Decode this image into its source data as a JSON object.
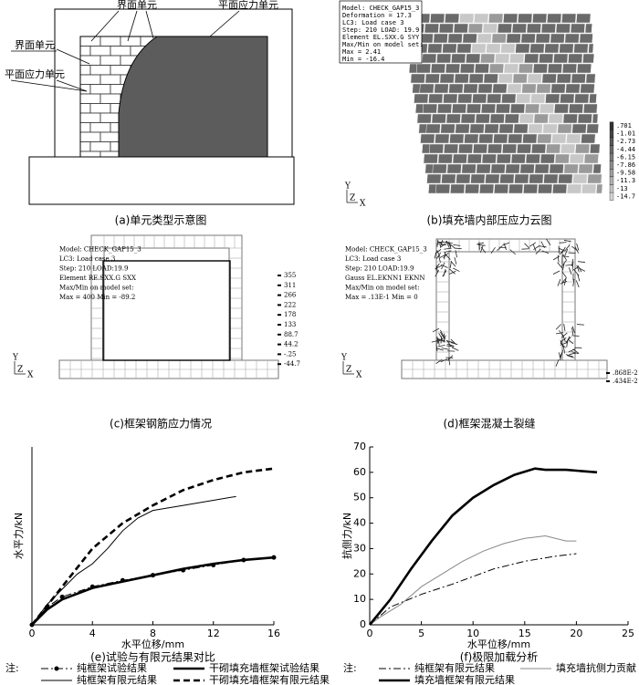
{
  "figures": {
    "a": {
      "caption": "(a)单元类型示意图",
      "labels": [
        "界面单元",
        "平面应力单元",
        "界面单元",
        "平面应力单元"
      ]
    },
    "b": {
      "caption": "(b)填充墙内部压应力云图",
      "info": [
        "Model: CHECK_GAP15_3",
        "Deformation = 17.3",
        "LC3: Load case 3",
        "Step: 210  LOAD: 19.9",
        "Element EL.SXX.G SYY",
        "Max/Min on model set:",
        "Max = 2.41",
        "Min = -16.4"
      ],
      "legend": [
        ".701",
        "-1.01",
        "-2.73",
        "-4.44",
        "-6.15",
        "-7.86",
        "-9.58",
        "-11.3",
        "-13",
        "-14.7"
      ],
      "axes": [
        "Y",
        "Z",
        "X"
      ]
    },
    "c": {
      "caption": "(c)框架钢筋应力情况",
      "info": [
        "Model: CHECK_GAP15_3",
        "LC3: Load case 3",
        "Step: 210   LOAD:19.9",
        "Element RE.SXX.G SXX",
        "Max/Min on model set:",
        "Max = 400    Min = -89.2"
      ],
      "legend": [
        "355",
        "311",
        "266",
        "222",
        "178",
        "133",
        "88.7",
        "44.2",
        "-.25",
        "-44.7"
      ],
      "axes": [
        "Y",
        "Z",
        "X"
      ]
    },
    "d": {
      "caption": "(d)框架混凝土裂缝",
      "info": [
        "Model: CHECK_GAP15_3",
        "LC3: Load case 3",
        "Step: 210   LOAD:19.9",
        "Gauss EL.EKNN1 EKNN",
        "Max/Min on model set:",
        "Max = .13E-1    Min = 0"
      ],
      "legend": [
        ".868E-2",
        ".434E-2"
      ],
      "axes": [
        "Y",
        "Z",
        "X"
      ]
    }
  },
  "chart_data": [
    {
      "type": "line",
      "caption": "(e)试验与有限元结果对比",
      "xlabel": "水平位移/mm",
      "ylabel": "水平力/kN",
      "note": "注:",
      "xlim": [
        0,
        16
      ],
      "xticks": [
        0,
        4,
        8,
        12,
        16
      ],
      "ylim": [
        0,
        70
      ],
      "series": [
        {
          "name": "纯框架试验结果",
          "color": "#000000",
          "linestyle": "dashdot",
          "linewidth": "thin",
          "marker": "circle",
          "x": [
            0,
            1,
            2,
            4,
            6,
            8,
            10,
            12,
            14,
            16
          ],
          "values": [
            0,
            7,
            11,
            15,
            17.5,
            19.5,
            21.5,
            23.5,
            25.5,
            26.5
          ]
        },
        {
          "name": "干砌填充墙框架试验结果",
          "color": "#000000",
          "linestyle": "solid",
          "linewidth": "thick",
          "x": [
            0,
            1,
            2,
            4,
            6,
            8,
            10,
            12,
            14,
            16
          ],
          "values": [
            0,
            6,
            10,
            14.5,
            17,
            19.5,
            22,
            24,
            25.5,
            26.5
          ]
        },
        {
          "name": "纯框架有限元结果",
          "color": "#000000",
          "linestyle": "solid",
          "linewidth": "thin",
          "x": [
            0,
            1,
            2,
            3,
            4,
            5,
            6,
            7,
            8,
            10,
            12,
            13.5
          ],
          "values": [
            0,
            8,
            14,
            20,
            24,
            30,
            37,
            42,
            45,
            47,
            49,
            50.5
          ]
        },
        {
          "name": "干砌填充墙框架有限元结果",
          "color": "#000000",
          "linestyle": "dashed",
          "linewidth": "thick",
          "x": [
            0,
            2,
            4,
            6,
            8,
            10,
            12,
            14,
            16
          ],
          "values": [
            0,
            15,
            30,
            40,
            47,
            53,
            57,
            60,
            61.5
          ]
        }
      ]
    },
    {
      "type": "line",
      "caption": "(f)极限加载分析",
      "xlabel": "水平位移/mm",
      "ylabel": "抗侧力/kN",
      "note": "注:",
      "xlim": [
        0,
        25
      ],
      "xticks": [
        0,
        5,
        10,
        15,
        20,
        25
      ],
      "ylim": [
        0,
        70
      ],
      "yticks": [
        0,
        10,
        20,
        30,
        40,
        50,
        60,
        70
      ],
      "series": [
        {
          "name": "纯框架有限元结果",
          "color": "#000000",
          "linestyle": "dashdot",
          "linewidth": "thin",
          "x": [
            0,
            2,
            5,
            8,
            10,
            12,
            15,
            18,
            20
          ],
          "values": [
            0,
            7,
            12,
            16,
            19,
            22,
            25,
            27,
            28
          ]
        },
        {
          "name": "填充墙抗侧力贡献",
          "color": "#888888",
          "linestyle": "solid",
          "linewidth": "thin",
          "x": [
            0,
            1,
            3,
            5,
            7,
            9,
            11,
            13,
            15,
            17,
            19,
            20
          ],
          "values": [
            0,
            3,
            8,
            15,
            20,
            25,
            29,
            32,
            34,
            35,
            33,
            33
          ]
        },
        {
          "name": "填充墙框架有限元结果",
          "color": "#000000",
          "linestyle": "solid",
          "linewidth": "thick",
          "x": [
            0,
            2,
            4,
            6,
            8,
            10,
            12,
            14,
            16,
            17,
            19,
            22
          ],
          "values": [
            0,
            10,
            22,
            33,
            43,
            50,
            55,
            59,
            61.5,
            61,
            61,
            60
          ]
        }
      ]
    }
  ]
}
